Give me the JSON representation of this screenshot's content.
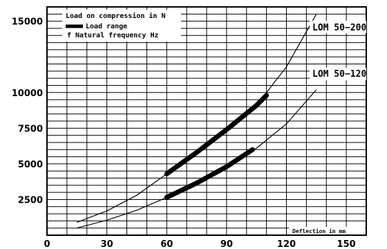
{
  "chart_data": {
    "type": "line",
    "xlabel": "Deflection in mm",
    "ylabel": "",
    "xlim": [
      0,
      160
    ],
    "ylim": [
      0,
      16000
    ],
    "x_ticks": [
      0,
      30,
      60,
      90,
      120,
      150
    ],
    "y_ticks": [
      2500,
      5000,
      7500,
      10000,
      15000
    ],
    "legend": {
      "line1": "Load on compression in N",
      "line2": "Load range",
      "line3_symbol": "f",
      "line3": "Natural frequency Hz"
    },
    "grid": true,
    "series": [
      {
        "name": "LOM 50−200",
        "points": [
          [
            15,
            900
          ],
          [
            30,
            1700
          ],
          [
            45,
            2800
          ],
          [
            60,
            4300
          ],
          [
            75,
            5800
          ],
          [
            90,
            7400
          ],
          [
            105,
            9100
          ],
          [
            120,
            11800
          ],
          [
            135,
            15500
          ]
        ],
        "load_range": [
          [
            60,
            4300
          ],
          [
            75,
            5800
          ],
          [
            90,
            7400
          ],
          [
            105,
            9100
          ],
          [
            110,
            9800
          ]
        ]
      },
      {
        "name": "LOM 50−120",
        "points": [
          [
            15,
            500
          ],
          [
            30,
            1050
          ],
          [
            45,
            1750
          ],
          [
            60,
            2650
          ],
          [
            75,
            3650
          ],
          [
            90,
            4800
          ],
          [
            105,
            6100
          ],
          [
            120,
            7800
          ],
          [
            135,
            10200
          ]
        ],
        "load_range": [
          [
            60,
            2650
          ],
          [
            75,
            3650
          ],
          [
            90,
            4800
          ],
          [
            103,
            6000
          ]
        ]
      }
    ]
  }
}
